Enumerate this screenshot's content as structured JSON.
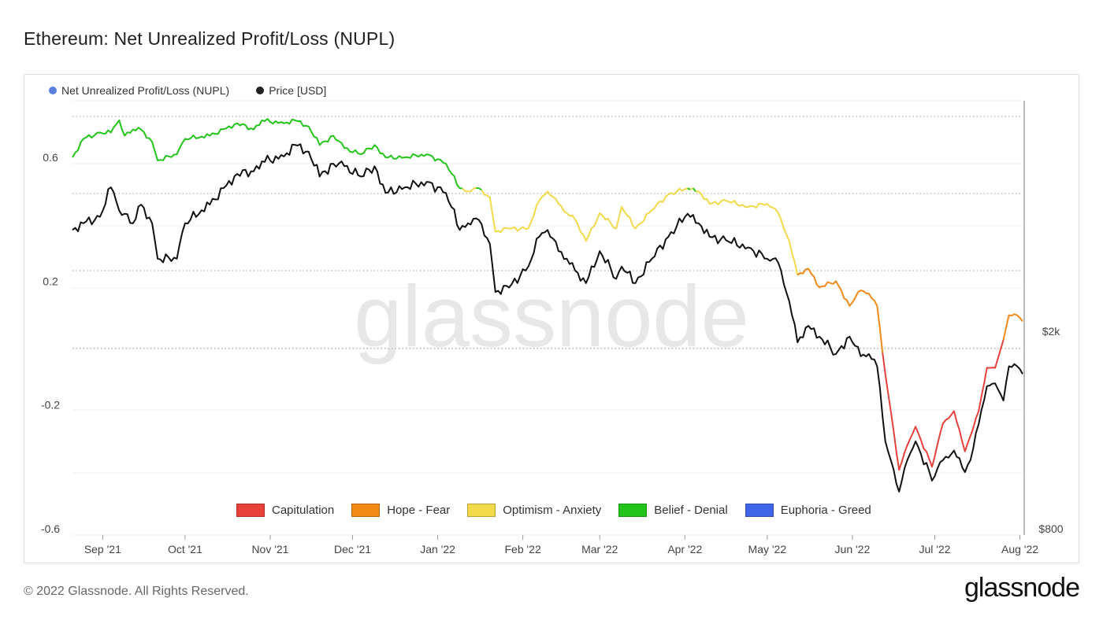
{
  "title": "Ethereum: Net Unrealized Profit/Loss (NUPL)",
  "footer": "© 2022 Glassnode. All Rights Reserved.",
  "logo": "glassnode",
  "watermark": "glassnode",
  "chart_data": {
    "type": "line",
    "title": "Ethereum: Net Unrealized Profit/Loss (NUPL)",
    "legend_position": "top-left",
    "grid": true,
    "series": [
      {
        "name": "Net Unrealized Profit/Loss (NUPL)",
        "axis": "left",
        "legend_color": "#5b7fe0"
      },
      {
        "name": "Price [USD]",
        "axis": "right",
        "legend_color": "#222222"
      }
    ],
    "y_left": {
      "ticks": [
        0.6,
        0.2,
        -0.2,
        -0.6
      ],
      "tick_labels": [
        "0.6",
        "0.2",
        "-0.2",
        "-0.6"
      ],
      "range": [
        -0.6,
        0.78
      ]
    },
    "y_right": {
      "scale": "log",
      "ticks": [
        2000,
        800
      ],
      "tick_labels": [
        "$2k",
        "$800"
      ]
    },
    "x_tick_labels": [
      "Sep '21",
      "Oct '21",
      "Nov '21",
      "Dec '21",
      "Jan '22",
      "Feb '22",
      "Mar '22",
      "Apr '22",
      "May '22",
      "Jun '22",
      "Jul '22",
      "Aug '22"
    ],
    "nupl_keyframes": [
      [
        "Aug 21",
        0.6
      ],
      [
        "Aug 25",
        0.66
      ],
      [
        "Aug 31",
        0.68
      ],
      [
        "Sep 4",
        0.68
      ],
      [
        "Sep 7",
        0.72
      ],
      [
        "Sep 9",
        0.67
      ],
      [
        "Sep 12",
        0.69
      ],
      [
        "Sep 15",
        0.69
      ],
      [
        "Sep 19",
        0.65
      ],
      [
        "Sep 21",
        0.59
      ],
      [
        "Sep 28",
        0.61
      ],
      [
        "Oct 1",
        0.66
      ],
      [
        "Oct 10",
        0.67
      ],
      [
        "Oct 20",
        0.71
      ],
      [
        "Oct 26",
        0.69
      ],
      [
        "Oct 29",
        0.72
      ],
      [
        "Nov 6",
        0.71
      ],
      [
        "Nov 10",
        0.72
      ],
      [
        "Nov 15",
        0.7
      ],
      [
        "Nov 19",
        0.64
      ],
      [
        "Nov 24",
        0.67
      ],
      [
        "Nov 28",
        0.63
      ],
      [
        "Dec 4",
        0.61
      ],
      [
        "Dec 9",
        0.64
      ],
      [
        "Dec 13",
        0.6
      ],
      [
        "Dec 20",
        0.6
      ],
      [
        "Dec 28",
        0.61
      ],
      [
        "Jan 4",
        0.58
      ],
      [
        "Jan 9",
        0.5
      ],
      [
        "Jan 12",
        0.49
      ],
      [
        "Jan 16",
        0.5
      ],
      [
        "Jan 20",
        0.47
      ],
      [
        "Jan 22",
        0.36
      ],
      [
        "Jan 27",
        0.37
      ],
      [
        "Feb 3",
        0.37
      ],
      [
        "Feb 7",
        0.46
      ],
      [
        "Feb 10",
        0.49
      ],
      [
        "Feb 14",
        0.45
      ],
      [
        "Feb 17",
        0.42
      ],
      [
        "Feb 20",
        0.4
      ],
      [
        "Feb 24",
        0.33
      ],
      [
        "Mar 1",
        0.42
      ],
      [
        "Mar 7",
        0.37
      ],
      [
        "Mar 9",
        0.44
      ],
      [
        "Mar 14",
        0.37
      ],
      [
        "Mar 20",
        0.43
      ],
      [
        "Mar 26",
        0.48
      ],
      [
        "Apr 2",
        0.5
      ],
      [
        "Apr 6",
        0.49
      ],
      [
        "Apr 10",
        0.45
      ],
      [
        "Apr 16",
        0.46
      ],
      [
        "Apr 24",
        0.44
      ],
      [
        "May 1",
        0.45
      ],
      [
        "May 5",
        0.42
      ],
      [
        "May 9",
        0.33
      ],
      [
        "May 12",
        0.22
      ],
      [
        "May 16",
        0.24
      ],
      [
        "May 20",
        0.18
      ],
      [
        "May 26",
        0.2
      ],
      [
        "May 31",
        0.12
      ],
      [
        "Jun 4",
        0.17
      ],
      [
        "Jun 7",
        0.16
      ],
      [
        "Jun 10",
        0.12
      ],
      [
        "Jun 13",
        -0.1
      ],
      [
        "Jun 15",
        -0.22
      ],
      [
        "Jun 18",
        -0.41
      ],
      [
        "Jun 21",
        -0.33
      ],
      [
        "Jun 24",
        -0.27
      ],
      [
        "Jun 30",
        -0.4
      ],
      [
        "Jul 4",
        -0.26
      ],
      [
        "Jul 8",
        -0.22
      ],
      [
        "Jul 12",
        -0.35
      ],
      [
        "Jul 14",
        -0.3
      ],
      [
        "Jul 17",
        -0.22
      ],
      [
        "Jul 20",
        -0.08
      ],
      [
        "Jul 23",
        -0.08
      ],
      [
        "Jul 26",
        0.01
      ],
      [
        "Jul 28",
        0.09
      ],
      [
        "Jul 31",
        0.09
      ],
      [
        "Aug 2",
        0.07
      ]
    ],
    "price_keyframes_usd": [
      [
        "Aug 21",
        3200
      ],
      [
        "Aug 25",
        3300
      ],
      [
        "Aug 31",
        3400
      ],
      [
        "Sep 4",
        3900
      ],
      [
        "Sep 7",
        3500
      ],
      [
        "Sep 9",
        3450
      ],
      [
        "Sep 12",
        3300
      ],
      [
        "Sep 15",
        3600
      ],
      [
        "Sep 19",
        3300
      ],
      [
        "Sep 21",
        2800
      ],
      [
        "Sep 28",
        2800
      ],
      [
        "Oct 1",
        3300
      ],
      [
        "Oct 10",
        3600
      ],
      [
        "Oct 20",
        4150
      ],
      [
        "Oct 26",
        4200
      ],
      [
        "Oct 29",
        4400
      ],
      [
        "Nov 6",
        4500
      ],
      [
        "Nov 10",
        4750
      ],
      [
        "Nov 15",
        4600
      ],
      [
        "Nov 19",
        4100
      ],
      [
        "Nov 24",
        4350
      ],
      [
        "Nov 28",
        4300
      ],
      [
        "Dec 4",
        4100
      ],
      [
        "Dec 9",
        4300
      ],
      [
        "Dec 13",
        3800
      ],
      [
        "Dec 20",
        3900
      ],
      [
        "Dec 28",
        4000
      ],
      [
        "Jan 4",
        3800
      ],
      [
        "Jan 9",
        3200
      ],
      [
        "Jan 12",
        3300
      ],
      [
        "Jan 16",
        3350
      ],
      [
        "Jan 20",
        3000
      ],
      [
        "Jan 22",
        2400
      ],
      [
        "Jan 27",
        2450
      ],
      [
        "Feb 3",
        2700
      ],
      [
        "Feb 7",
        3100
      ],
      [
        "Feb 10",
        3200
      ],
      [
        "Feb 14",
        2900
      ],
      [
        "Feb 17",
        2800
      ],
      [
        "Feb 20",
        2650
      ],
      [
        "Feb 24",
        2500
      ],
      [
        "Mar 1",
        2900
      ],
      [
        "Mar 7",
        2550
      ],
      [
        "Mar 9",
        2700
      ],
      [
        "Mar 14",
        2500
      ],
      [
        "Mar 20",
        2800
      ],
      [
        "Mar 26",
        3100
      ],
      [
        "Apr 2",
        3450
      ],
      [
        "Apr 6",
        3300
      ],
      [
        "Apr 10",
        3100
      ],
      [
        "Apr 16",
        3050
      ],
      [
        "Apr 24",
        2950
      ],
      [
        "May 1",
        2800
      ],
      [
        "May 5",
        2750
      ],
      [
        "May 9",
        2300
      ],
      [
        "May 12",
        1900
      ],
      [
        "May 16",
        2050
      ],
      [
        "May 20",
        1950
      ],
      [
        "May 26",
        1800
      ],
      [
        "May 31",
        1950
      ],
      [
        "Jun 4",
        1780
      ],
      [
        "Jun 7",
        1800
      ],
      [
        "Jun 10",
        1700
      ],
      [
        "Jun 13",
        1200
      ],
      [
        "Jun 15",
        1100
      ],
      [
        "Jun 18",
        950
      ],
      [
        "Jun 21",
        1100
      ],
      [
        "Jun 24",
        1200
      ],
      [
        "Jun 30",
        1000
      ],
      [
        "Jul 4",
        1100
      ],
      [
        "Jul 8",
        1150
      ],
      [
        "Jul 12",
        1040
      ],
      [
        "Jul 14",
        1100
      ],
      [
        "Jul 17",
        1300
      ],
      [
        "Jul 20",
        1550
      ],
      [
        "Jul 23",
        1570
      ],
      [
        "Jul 26",
        1450
      ],
      [
        "Jul 28",
        1700
      ],
      [
        "Jul 31",
        1700
      ],
      [
        "Aug 2",
        1640
      ]
    ]
  },
  "legend_top": [
    {
      "label": "Net Unrealized Profit/Loss (NUPL)",
      "color": "#5b7fe0"
    },
    {
      "label": "Price [USD]",
      "color": "#222222"
    }
  ],
  "legend_bottom": [
    {
      "label": "Capitulation",
      "color": "#e8413c"
    },
    {
      "label": "Hope - Fear",
      "color": "#f28a17"
    },
    {
      "label": "Optimism - Anxiety",
      "color": "#f2d94a"
    },
    {
      "label": "Belief - Denial",
      "color": "#23c41a"
    },
    {
      "label": "Euphoria - Greed",
      "color": "#3f66e8"
    }
  ]
}
